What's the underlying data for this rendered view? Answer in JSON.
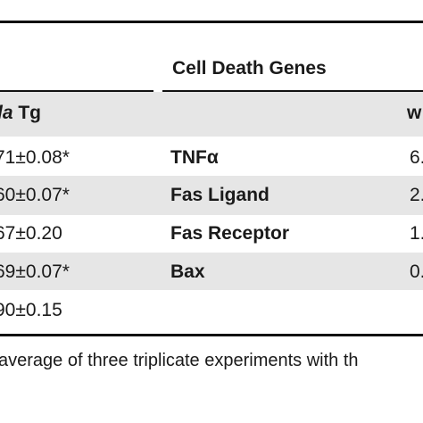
{
  "table": {
    "group_header": "Cell Death Genes",
    "left_header_italic": "la",
    "left_header_rest": " Tg",
    "right_header_fragment": "w",
    "rows": [
      {
        "left_value": "71±0.08*",
        "gene": "TNFα",
        "right_value": "6."
      },
      {
        "left_value": "60±0.07*",
        "gene": "Fas Ligand",
        "right_value": "2."
      },
      {
        "left_value": "67±0.20",
        "gene": "Fas Receptor",
        "right_value": "1."
      },
      {
        "left_value": "69±0.07*",
        "gene": "Bax",
        "right_value": "0."
      },
      {
        "left_value": "90±0.15",
        "gene": "",
        "right_value": ""
      }
    ]
  },
  "footnote": "average of three triplicate experiments with th"
}
